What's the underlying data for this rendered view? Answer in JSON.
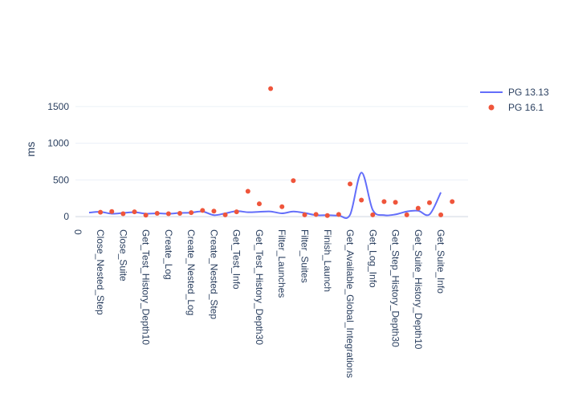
{
  "chart_data": {
    "type": "line",
    "title": "",
    "xlabel": "",
    "ylabel": "ms",
    "ylim": [
      -130,
      1860
    ],
    "y_ticks": [
      0,
      500,
      1000,
      1500
    ],
    "x_tick_labels": [
      "0",
      "Close_Nested_Step",
      "Close_Suite",
      "Get_Test_History_Depth10",
      "Create_Log",
      "Create_Nested_Log",
      "Create_Nested_Step",
      "Get_Test_Info",
      "Get_Test_History_Depth30",
      "Filter_Launches",
      "Filter_Suites",
      "Finish_Launch",
      "Get_Available_Global_Integrations",
      "Get_Log_Info",
      "Get_Step_History_Depth30",
      "Get_Suite_History_Depth10",
      "Get_Suite_Info"
    ],
    "grid": true,
    "legend_position": "top-right",
    "series": [
      {
        "name": "PG 13.13",
        "type": "line",
        "smooth": true,
        "color": "#636efa",
        "x": [
          0.5,
          1,
          1.5,
          2,
          2.5,
          3,
          3.5,
          4,
          4.5,
          5,
          5.5,
          6,
          6.5,
          7,
          7.5,
          8,
          8.5,
          9,
          9.5,
          10,
          10.5,
          11,
          11.5,
          12,
          12.5,
          13,
          13.5,
          14,
          14.5,
          15,
          15.5,
          16
        ],
        "values": [
          55,
          65,
          40,
          50,
          60,
          40,
          45,
          40,
          50,
          55,
          70,
          20,
          45,
          75,
          60,
          65,
          70,
          45,
          70,
          50,
          20,
          20,
          15,
          25,
          600,
          90,
          20,
          30,
          70,
          80,
          30,
          330
        ]
      },
      {
        "name": "PG 16.1",
        "type": "scatter",
        "color": "#ef553b",
        "x": [
          1,
          1.5,
          2,
          2.5,
          3,
          3.5,
          4,
          4.5,
          5,
          5.5,
          6,
          6.5,
          7,
          7.5,
          8,
          8.5,
          9,
          9.5,
          10,
          10.5,
          11,
          11.5,
          12,
          12.5,
          13,
          13.5,
          14,
          14.5,
          15,
          15.5,
          16,
          16.5
        ],
        "values": [
          60,
          70,
          40,
          65,
          20,
          45,
          40,
          45,
          55,
          85,
          75,
          25,
          65,
          345,
          175,
          1745,
          135,
          490,
          25,
          30,
          15,
          30,
          445,
          225,
          25,
          205,
          195,
          25,
          115,
          190,
          25,
          205
        ]
      }
    ]
  }
}
